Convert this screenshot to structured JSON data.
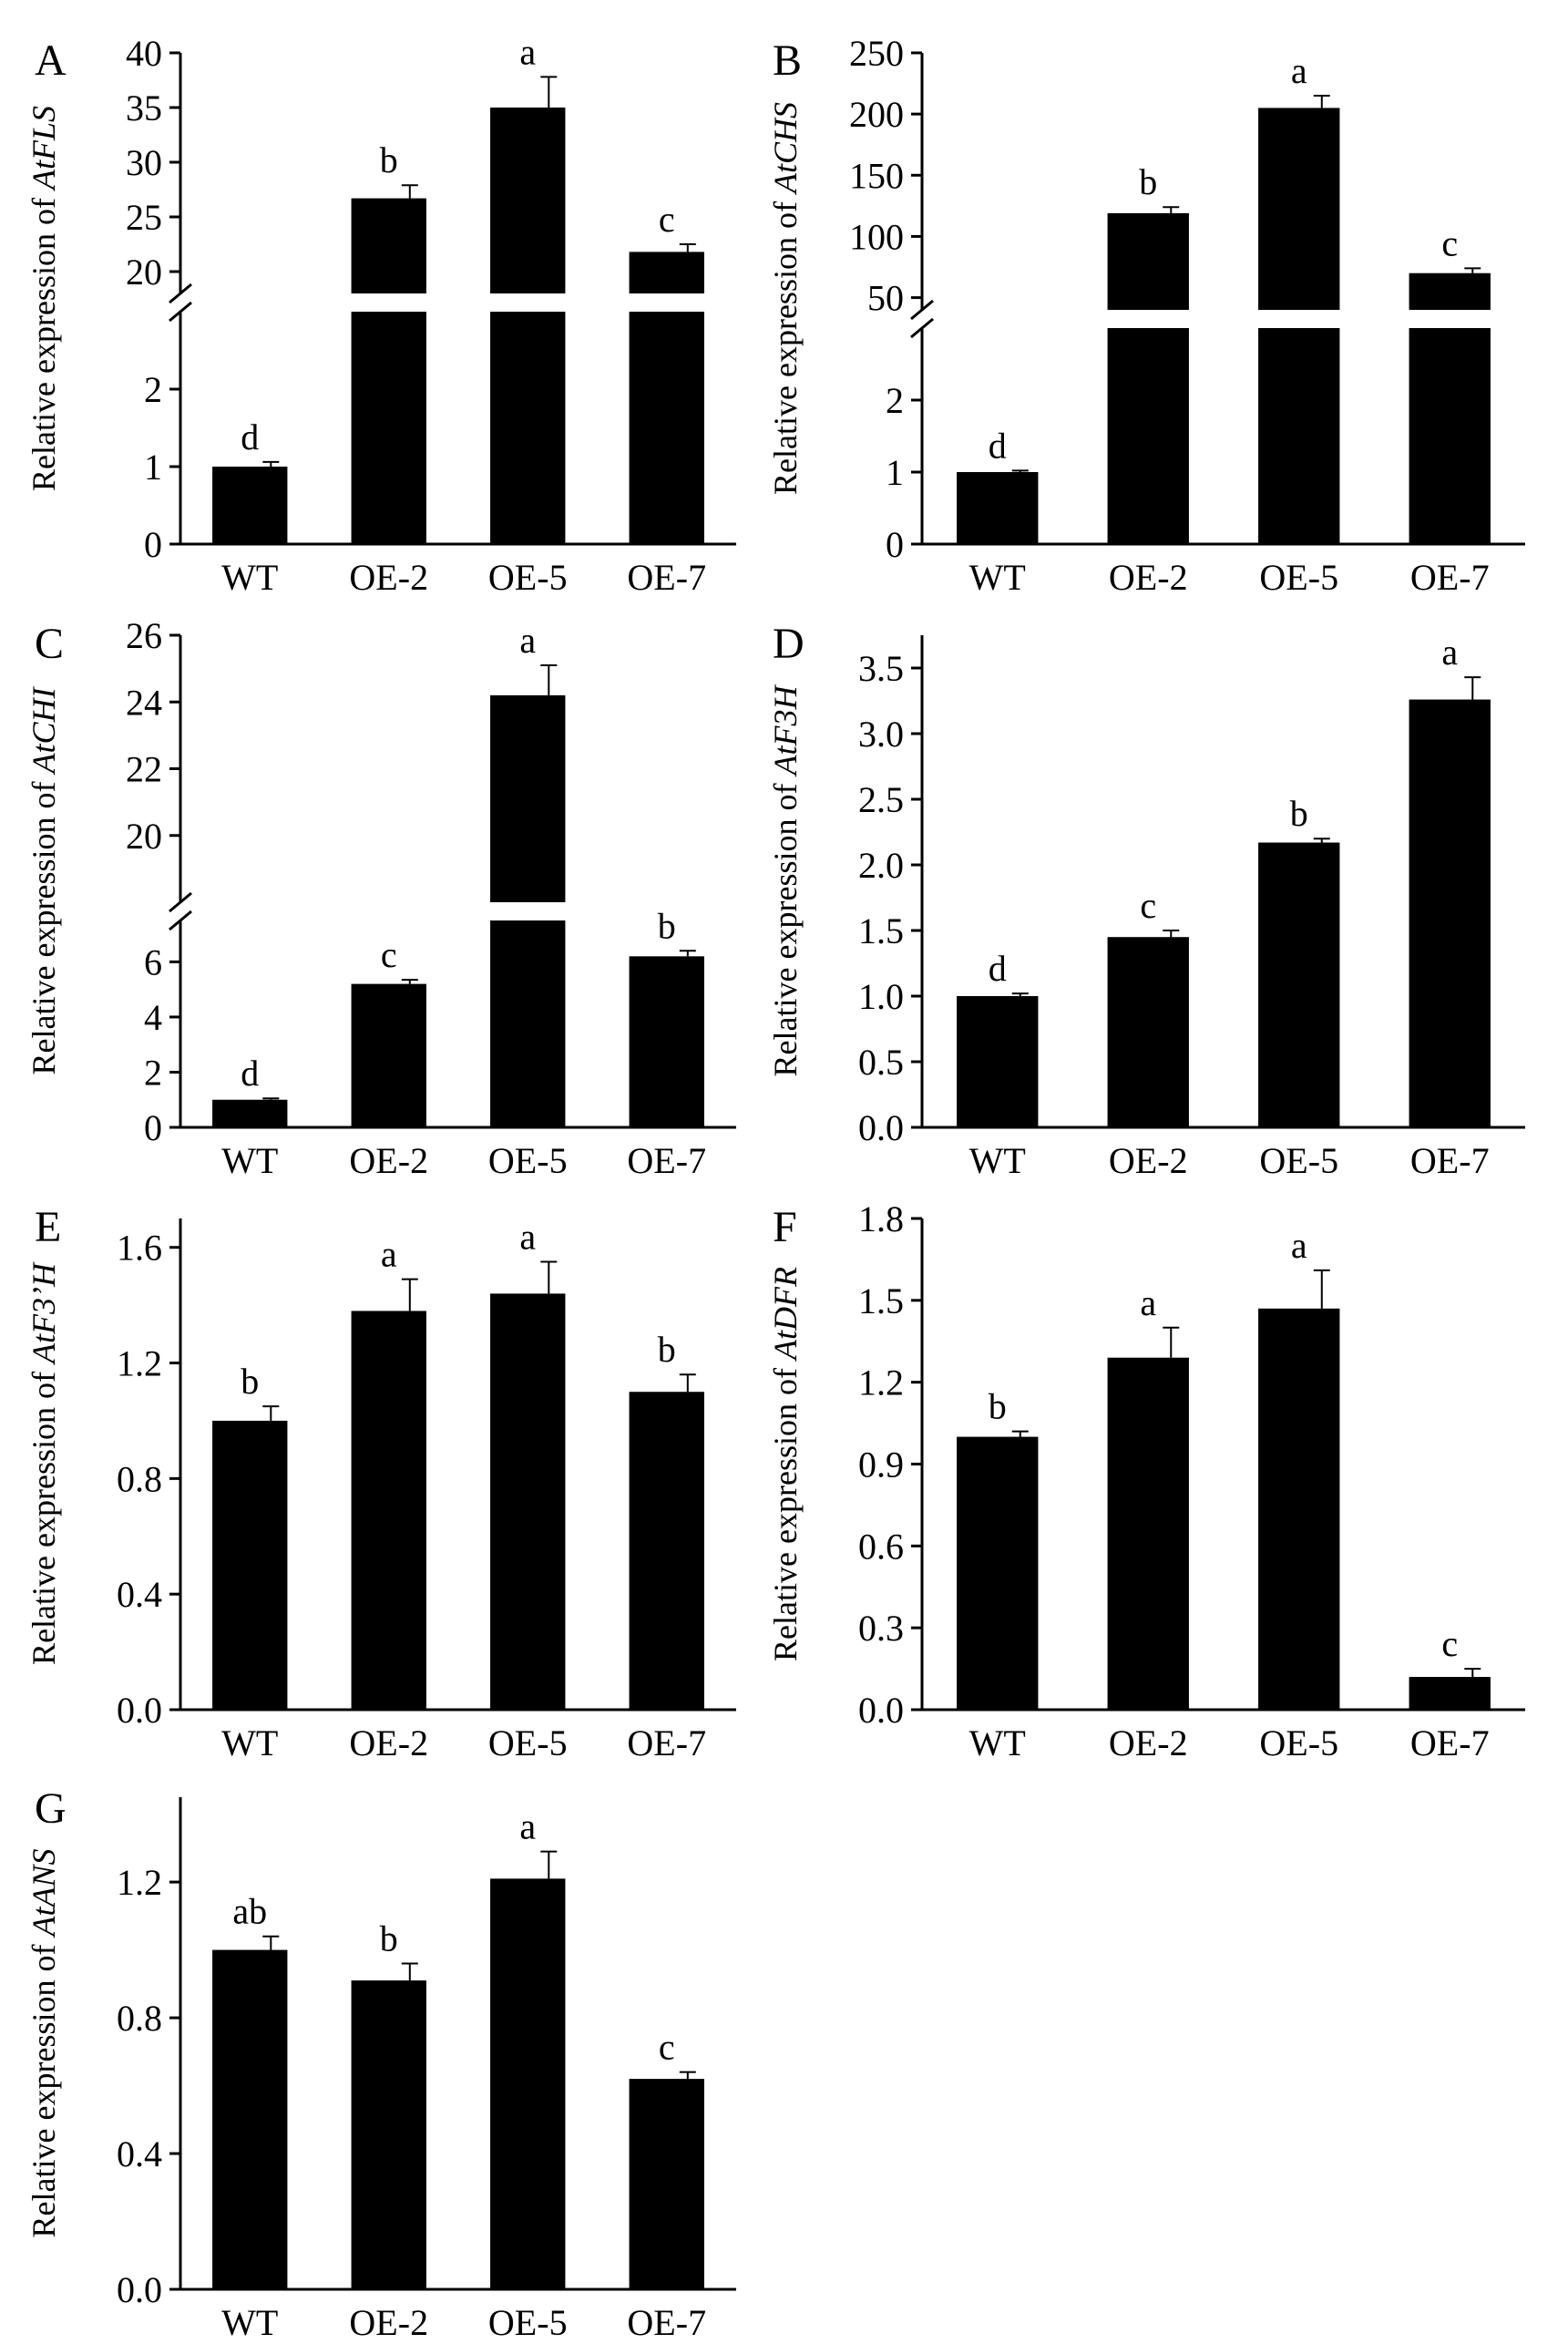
{
  "chart_data": [
    {
      "panel": "A",
      "type": "bar",
      "title": "",
      "ylabel_prefix": "Relative expression of ",
      "gene": "AtFLS",
      "categories": [
        "WT",
        "OE-2",
        "OE-5",
        "OE-7"
      ],
      "values": [
        1.0,
        26.7,
        35.0,
        21.8
      ],
      "errors": [
        0.06,
        1.2,
        2.8,
        0.7
      ],
      "significance": [
        "d",
        "b",
        "a",
        "c"
      ],
      "axis_break": {
        "lower": [
          0,
          3
        ],
        "upper": [
          18,
          40
        ]
      },
      "ticks_lower": [
        0,
        1,
        2
      ],
      "ticks_upper": [
        20,
        25,
        30,
        35,
        40
      ]
    },
    {
      "panel": "B",
      "type": "bar",
      "title": "",
      "ylabel_prefix": "Relative expression of ",
      "gene": "AtCHS",
      "categories": [
        "WT",
        "OE-2",
        "OE-5",
        "OE-7"
      ],
      "values": [
        1.0,
        119,
        205,
        70
      ],
      "errors": [
        0.02,
        5,
        10,
        4
      ],
      "significance": [
        "d",
        "b",
        "a",
        "c"
      ],
      "axis_break": {
        "lower": [
          0,
          3
        ],
        "upper": [
          40,
          250
        ]
      },
      "ticks_lower": [
        0,
        1,
        2
      ],
      "ticks_upper": [
        50,
        100,
        150,
        200,
        250
      ]
    },
    {
      "panel": "C",
      "type": "bar",
      "title": "",
      "ylabel_prefix": "Relative expression of ",
      "gene": "AtCHI",
      "categories": [
        "WT",
        "OE-2",
        "OE-5",
        "OE-7"
      ],
      "values": [
        1.0,
        5.2,
        24.2,
        6.2
      ],
      "errors": [
        0.05,
        0.15,
        0.9,
        0.2
      ],
      "significance": [
        "d",
        "c",
        "a",
        "b"
      ],
      "axis_break": {
        "lower": [
          0,
          7.5
        ],
        "upper": [
          18,
          26
        ]
      },
      "ticks_lower": [
        0,
        2,
        4,
        6
      ],
      "ticks_upper": [
        20,
        22,
        24,
        26
      ]
    },
    {
      "panel": "D",
      "type": "bar",
      "title": "",
      "ylabel_prefix": "Relative expression of ",
      "gene": "AtF3H",
      "categories": [
        "WT",
        "OE-2",
        "OE-5",
        "OE-7"
      ],
      "values": [
        1.0,
        1.45,
        2.17,
        3.26
      ],
      "errors": [
        0.02,
        0.05,
        0.03,
        0.17
      ],
      "significance": [
        "d",
        "c",
        "b",
        "a"
      ],
      "ylim": [
        0,
        3.75
      ],
      "ticks": [
        0.0,
        0.5,
        1.0,
        1.5,
        2.0,
        2.5,
        3.0,
        3.5
      ],
      "decimals": 1
    },
    {
      "panel": "E",
      "type": "bar",
      "title": "",
      "ylabel_prefix": "Relative expression of ",
      "gene": "AtF3’H",
      "categories": [
        "WT",
        "OE-2",
        "OE-5",
        "OE-7"
      ],
      "values": [
        1.0,
        1.38,
        1.44,
        1.1
      ],
      "errors": [
        0.05,
        0.11,
        0.11,
        0.06
      ],
      "significance": [
        "b",
        "a",
        "a",
        "b"
      ],
      "ylim": [
        0,
        1.7
      ],
      "ticks": [
        0.0,
        0.4,
        0.8,
        1.2,
        1.6
      ],
      "decimals": 1
    },
    {
      "panel": "F",
      "type": "bar",
      "title": "",
      "ylabel_prefix": "Relative expression of ",
      "gene": "AtDFR",
      "categories": [
        "WT",
        "OE-2",
        "OE-5",
        "OE-7"
      ],
      "values": [
        1.0,
        1.29,
        1.47,
        0.12
      ],
      "errors": [
        0.02,
        0.11,
        0.14,
        0.03
      ],
      "significance": [
        "b",
        "a",
        "a",
        "c"
      ],
      "ylim": [
        0,
        1.8
      ],
      "ticks": [
        0.0,
        0.3,
        0.6,
        0.9,
        1.2,
        1.5,
        1.8
      ],
      "decimals": 1
    },
    {
      "panel": "G",
      "type": "bar",
      "title": "",
      "ylabel_prefix": "Relative expression of ",
      "gene": "AtANS",
      "categories": [
        "WT",
        "OE-2",
        "OE-5",
        "OE-7"
      ],
      "values": [
        1.0,
        0.91,
        1.21,
        0.62
      ],
      "errors": [
        0.04,
        0.05,
        0.08,
        0.02
      ],
      "significance": [
        "ab",
        "b",
        "a",
        "c"
      ],
      "ylim": [
        0,
        1.45
      ],
      "ticks": [
        0.0,
        0.4,
        0.8,
        1.2
      ],
      "decimals": 1
    }
  ]
}
